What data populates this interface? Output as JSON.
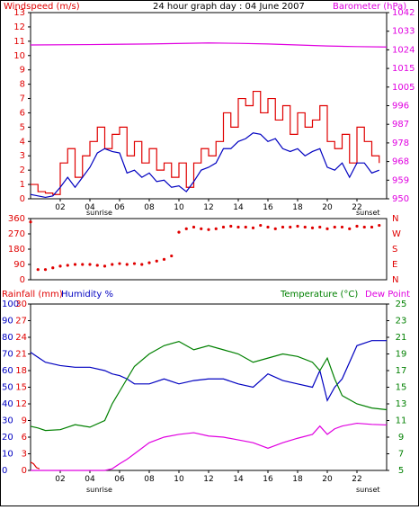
{
  "window": {
    "title": "24 hour graph day : 04 June 2007"
  },
  "labels": {
    "wind": "Windspeed (m/s)",
    "barometer": "Barometer (hPa)",
    "rainfall": "Rainfall (mm)",
    "humidity": "Humidity %",
    "temperature": "Temperature (°C)",
    "dewpoint": "Dew Point",
    "sunrise": "sunrise",
    "sunset": "sunset"
  },
  "colors": {
    "wind_max": "#e00000",
    "wind_avg": "#0000c0",
    "barometer": "#e000e0",
    "direction": "#e00000",
    "humidity": "#0000c0",
    "temperature": "#008000",
    "dewpoint": "#e000e0",
    "rainfall": "#e00000",
    "axis": "#000000"
  },
  "chart_data": [
    {
      "type": "line",
      "title": "24 hour graph day : 04 June 2007",
      "ylabel": "Windspeed (m/s)",
      "y2label": "Barometer (hPa)",
      "ylim": [
        0,
        13
      ],
      "yticks": [
        "0",
        "1",
        "2",
        "3",
        "4",
        "5",
        "6",
        "7",
        "8",
        "9",
        "10",
        "11",
        "12",
        "13"
      ],
      "y2ticks": [
        "950",
        "959",
        "968",
        "978",
        "987",
        "996",
        "1005",
        "1015",
        "1024",
        "1033",
        "1042"
      ],
      "xticks": [
        "02",
        "04",
        "06",
        "08",
        "10",
        "12",
        "14",
        "16",
        "18",
        "20",
        "22"
      ],
      "series": [
        {
          "values_hours": [
            0,
            0.5,
            1,
            1.5,
            2,
            2.5,
            3,
            3.5,
            4,
            4.5,
            5,
            5.5,
            6,
            6.5,
            7,
            7.5,
            8,
            8.5,
            9,
            9.5,
            10,
            10.5,
            11,
            11.5,
            12,
            12.5,
            13,
            13.5,
            14,
            14.5,
            15,
            15.5,
            16,
            16.5,
            17,
            17.5,
            18,
            18.5,
            19,
            19.5,
            20,
            20.5,
            21,
            21.5,
            22,
            22.5,
            23,
            23.5
          ],
          "values": [
            1,
            0.5,
            0.4,
            0.3,
            2.5,
            3.5,
            1.5,
            3,
            4,
            5,
            3.5,
            4.5,
            5,
            3,
            4,
            2.5,
            3.5,
            2,
            2.5,
            1.5,
            2.5,
            0.8,
            2.5,
            3.5,
            3,
            4,
            6,
            5,
            7,
            6.5,
            7.5,
            6,
            7,
            5.5,
            6.5,
            4.5,
            6,
            5,
            5.5,
            6.5,
            4,
            3.5,
            4.5,
            2.5,
            5,
            4,
            3,
            2.5
          ]
        },
        {
          "values_hours": [
            0,
            0.5,
            1,
            1.5,
            2,
            2.5,
            3,
            3.5,
            4,
            4.5,
            5,
            5.5,
            6,
            6.5,
            7,
            7.5,
            8,
            8.5,
            9,
            9.5,
            10,
            10.5,
            11,
            11.5,
            12,
            12.5,
            13,
            13.5,
            14,
            14.5,
            15,
            15.5,
            16,
            16.5,
            17,
            17.5,
            18,
            18.5,
            19,
            19.5,
            20,
            20.5,
            21,
            21.5,
            22,
            22.5,
            23,
            23.5
          ],
          "values": [
            0.3,
            0.2,
            0.1,
            0.2,
            0.8,
            1.5,
            0.8,
            1.5,
            2.2,
            3.2,
            3.5,
            3.3,
            3.2,
            1.8,
            2,
            1.5,
            1.8,
            1.2,
            1.3,
            0.8,
            0.9,
            0.5,
            1.2,
            2,
            2.2,
            2.5,
            3.5,
            3.5,
            4,
            4.2,
            4.6,
            4.5,
            4,
            4.2,
            3.5,
            3.3,
            3.5,
            3,
            3.3,
            3.5,
            2.2,
            2,
            2.5,
            1.5,
            2.5,
            2.5,
            1.8,
            2
          ]
        },
        {
          "values_hours": [
            0,
            4,
            8,
            12,
            14,
            16,
            18,
            20,
            22,
            24
          ],
          "values": [
            1026,
            1026.2,
            1026.5,
            1027,
            1026.8,
            1026.5,
            1026,
            1025.5,
            1025.2,
            1025
          ]
        }
      ]
    },
    {
      "type": "scatter",
      "yticks": [
        "360",
        "270",
        "180",
        "90",
        "0"
      ],
      "y2ticks": [
        "N",
        "W",
        "S",
        "E",
        "N"
      ],
      "ylim": [
        0,
        360
      ],
      "x": [
        0,
        0.5,
        1,
        1.5,
        2,
        2.5,
        3,
        3.5,
        4,
        4.5,
        5,
        5.5,
        6,
        6.5,
        7,
        7.5,
        8,
        8.5,
        9,
        9.5,
        10,
        10.5,
        11,
        11.5,
        12,
        12.5,
        13,
        13.5,
        14,
        14.5,
        15,
        15.5,
        16,
        16.5,
        17,
        17.5,
        18,
        18.5,
        19,
        19.5,
        20,
        20.5,
        21,
        21.5,
        22,
        22.5,
        23,
        23.5
      ],
      "values": [
        340,
        60,
        60,
        70,
        80,
        85,
        90,
        90,
        90,
        85,
        80,
        90,
        95,
        90,
        95,
        90,
        100,
        110,
        120,
        140,
        280,
        300,
        310,
        300,
        295,
        300,
        310,
        315,
        310,
        310,
        305,
        320,
        310,
        300,
        310,
        310,
        315,
        310,
        305,
        310,
        300,
        310,
        310,
        300,
        315,
        310,
        310,
        320
      ]
    },
    {
      "type": "line",
      "ylabel": "Rainfall (mm)",
      "y2label": "Temperature (°C)",
      "ylim": [
        0,
        100
      ],
      "yticks_rain": [
        "0",
        "3",
        "6",
        "9",
        "12",
        "15",
        "18",
        "21",
        "24",
        "27",
        "30"
      ],
      "yticks_hum": [
        "0",
        "10",
        "20",
        "30",
        "40",
        "50",
        "60",
        "70",
        "80",
        "90",
        "100"
      ],
      "y2ticks_temp": [
        "5",
        "7",
        "9",
        "11",
        "13",
        "15",
        "17",
        "19",
        "21",
        "23",
        "25"
      ],
      "series": [
        {
          "values_hours": [
            0,
            0.5,
            1,
            2,
            3,
            4,
            5,
            5.5,
            6,
            6.5,
            7,
            8,
            9,
            10,
            11,
            12,
            13,
            14,
            15,
            16,
            17,
            18,
            19,
            19.5,
            20,
            20.5,
            21,
            22,
            23,
            24
          ],
          "values": [
            71,
            68,
            65,
            63,
            62,
            62,
            60,
            58,
            57,
            55,
            52,
            52,
            55,
            52,
            54,
            55,
            55,
            52,
            50,
            58,
            54,
            52,
            50,
            60,
            42,
            50,
            55,
            75,
            78,
            78
          ]
        },
        {
          "values_hours": [
            0,
            0.5,
            1,
            2,
            3,
            4,
            5,
            5.5,
            6,
            6.5,
            7,
            8,
            9,
            10,
            11,
            12,
            13,
            14,
            15,
            16,
            17,
            18,
            19,
            19.5,
            20,
            20.5,
            21,
            22,
            23,
            24
          ],
          "values": [
            10.3,
            10.1,
            9.8,
            9.9,
            10.5,
            10.2,
            11,
            13,
            14.5,
            16,
            17.5,
            19,
            20,
            20.5,
            19.5,
            20,
            19.5,
            19,
            18,
            18.5,
            19,
            18.7,
            18,
            17,
            18.5,
            16,
            14,
            13,
            12.5,
            12.3
          ]
        },
        {
          "values_hours": [
            0,
            0.5,
            1,
            2,
            3,
            4,
            5,
            5.5,
            6,
            6.5,
            7,
            8,
            9,
            10,
            11,
            12,
            13,
            14,
            15,
            16,
            17,
            18,
            19,
            19.5,
            20,
            20.5,
            21,
            22,
            23,
            24
          ],
          "values": [
            0,
            0,
            0,
            0,
            0,
            0,
            0,
            0.3,
            1.2,
            2,
            3,
            5,
            6,
            6.5,
            6.8,
            6.2,
            6,
            5.5,
            5,
            4,
            5,
            5.8,
            6.5,
            8,
            6.5,
            7.5,
            8,
            8.5,
            8.3,
            8.2
          ]
        },
        {
          "values_hours": [
            0,
            0.2,
            0.4,
            0.6
          ],
          "values": [
            1.5,
            1.2,
            0.5,
            0.3
          ]
        }
      ]
    }
  ]
}
